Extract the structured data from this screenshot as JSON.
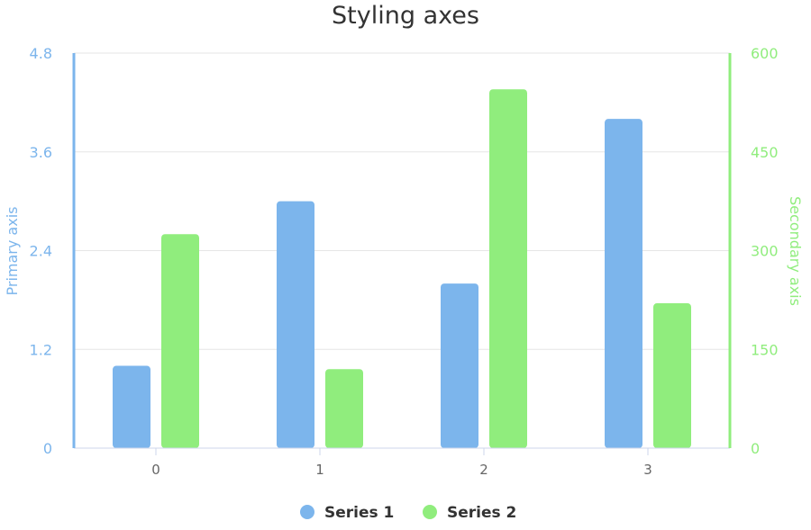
{
  "chart_data": {
    "type": "bar",
    "title": "Styling axes",
    "categories": [
      "0",
      "1",
      "2",
      "3"
    ],
    "series": [
      {
        "name": "Series 1",
        "axis": "primary",
        "color": "#7cb5ec",
        "values": [
          1.0,
          3.0,
          2.0,
          4.0
        ]
      },
      {
        "name": "Series 2",
        "axis": "secondary",
        "color": "#90ed7d",
        "values": [
          325,
          120,
          545,
          220
        ]
      }
    ],
    "primary_axis": {
      "label": "Primary axis",
      "color": "#7cb5ec",
      "ylim": [
        0,
        4.8
      ],
      "ticks": [
        "0",
        "1.2",
        "2.4",
        "3.6",
        "4.8"
      ]
    },
    "secondary_axis": {
      "label": "Secondary axis",
      "color": "#90ed7d",
      "ylim": [
        0,
        600
      ],
      "ticks": [
        "0",
        "150",
        "300",
        "450",
        "600"
      ]
    },
    "grid": true,
    "legend_position": "bottom-center"
  }
}
